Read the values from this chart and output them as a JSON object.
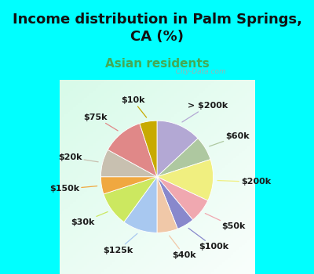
{
  "title": "Income distribution in Palm Springs,\nCA (%)",
  "subtitle": "Asian residents",
  "background_cyan": "#00FFFF",
  "watermark": "  City-Data.com",
  "labels": [
    "> $200k",
    "$60k",
    "$200k",
    "$50k",
    "$100k",
    "$40k",
    "$125k",
    "$30k",
    "$150k",
    "$20k",
    "$75k",
    "$10k"
  ],
  "sizes": [
    13,
    7,
    12,
    7,
    5,
    6,
    10,
    10,
    5,
    8,
    12,
    5
  ],
  "colors": [
    "#b3a8d4",
    "#aec8a0",
    "#f0ef80",
    "#f0a8b0",
    "#8888cc",
    "#f0c8a8",
    "#a8c8f0",
    "#cce860",
    "#f0a840",
    "#c8c0b0",
    "#e08888",
    "#c8aa00"
  ],
  "label_fontsize": 8,
  "title_fontsize": 13,
  "subtitle_fontsize": 11,
  "title_color": "#111111",
  "subtitle_color": "#44aa55",
  "label_color": "#1a1a1a"
}
